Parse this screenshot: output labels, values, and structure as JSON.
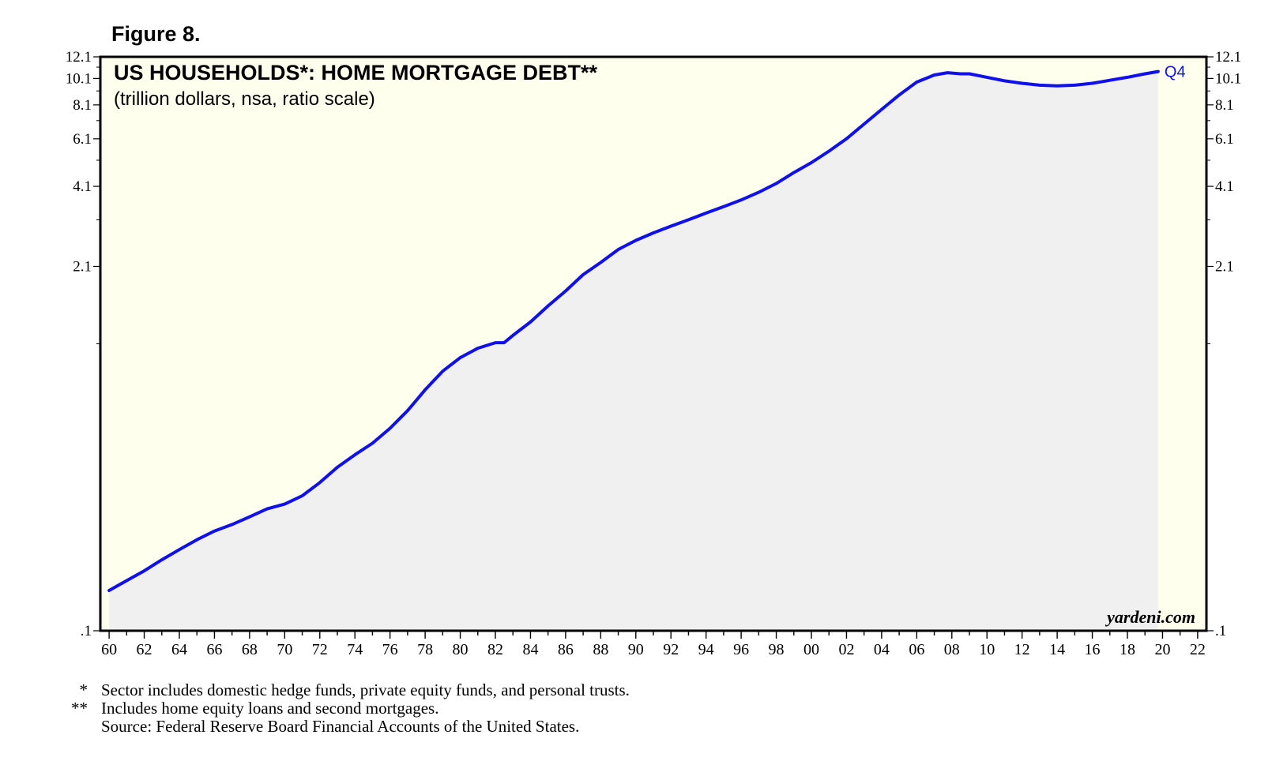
{
  "figure_label": "Figure 8.",
  "colors": {
    "plot_background": "#ffffee",
    "area_fill": "#f0f0f0",
    "line": "#1010ee",
    "frame": "#000000"
  },
  "chart_data": {
    "type": "area",
    "title": "US HOUSEHOLDS*: HOME MORTGAGE DEBT**",
    "subtitle": "(trillion dollars, nsa, ratio scale)",
    "y_scale": "log",
    "ylim": [
      0.1,
      12.1
    ],
    "y_ticks": [
      ".1",
      "2.1",
      "4.1",
      "6.1",
      "8.1",
      "10.1",
      "12.1"
    ],
    "y_tick_values": [
      0.1,
      2.1,
      4.1,
      6.1,
      8.1,
      10.1,
      12.1
    ],
    "xlim": [
      1959.5,
      2022.5
    ],
    "x_ticks": [
      "60",
      "62",
      "64",
      "66",
      "68",
      "70",
      "72",
      "74",
      "76",
      "78",
      "80",
      "82",
      "84",
      "86",
      "88",
      "90",
      "92",
      "94",
      "96",
      "98",
      "00",
      "02",
      "04",
      "06",
      "08",
      "10",
      "12",
      "14",
      "16",
      "18",
      "20",
      "22"
    ],
    "x_tick_values": [
      1960,
      1962,
      1964,
      1966,
      1968,
      1970,
      1972,
      1974,
      1976,
      1978,
      1980,
      1982,
      1984,
      1986,
      1988,
      1990,
      1992,
      1994,
      1996,
      1998,
      2000,
      2002,
      2004,
      2006,
      2008,
      2010,
      2012,
      2014,
      2016,
      2018,
      2020,
      2022
    ],
    "last_label": "Q4",
    "series": [
      {
        "x": [
          1960.0,
          1961.0,
          1962.0,
          1963.0,
          1964.0,
          1965.0,
          1966.0,
          1967.0,
          1968.0,
          1969.0,
          1970.0,
          1971.0,
          1972.0,
          1973.0,
          1974.0,
          1975.0,
          1976.0,
          1977.0,
          1978.0,
          1979.0,
          1980.0,
          1981.0,
          1982.0,
          1982.5,
          1983.0,
          1984.0,
          1985.0,
          1986.0,
          1987.0,
          1988.0,
          1989.0,
          1990.0,
          1991.0,
          1992.0,
          1993.0,
          1994.0,
          1995.0,
          1996.0,
          1997.0,
          1998.0,
          1999.0,
          2000.0,
          2001.0,
          2002.0,
          2003.0,
          2004.0,
          2005.0,
          2006.0,
          2007.0,
          2007.75,
          2008.5,
          2009.0,
          2010.0,
          2011.0,
          2012.0,
          2013.0,
          2014.0,
          2015.0,
          2016.0,
          2017.0,
          2018.0,
          2019.0,
          2019.75
        ],
        "y": [
          0.14,
          0.152,
          0.165,
          0.181,
          0.197,
          0.214,
          0.23,
          0.243,
          0.259,
          0.277,
          0.288,
          0.309,
          0.345,
          0.392,
          0.435,
          0.479,
          0.543,
          0.629,
          0.749,
          0.875,
          0.98,
          1.06,
          1.11,
          1.11,
          1.18,
          1.32,
          1.51,
          1.71,
          1.96,
          2.17,
          2.42,
          2.61,
          2.78,
          2.94,
          3.1,
          3.28,
          3.46,
          3.66,
          3.9,
          4.2,
          4.6,
          5.0,
          5.5,
          6.1,
          6.9,
          7.8,
          8.8,
          9.8,
          10.4,
          10.6,
          10.5,
          10.5,
          10.2,
          9.9,
          9.7,
          9.55,
          9.5,
          9.55,
          9.7,
          9.95,
          10.2,
          10.5,
          10.7
        ]
      }
    ]
  },
  "watermark": "yardeni.com",
  "footnotes": {
    "note1_marker": "*",
    "note1_text": "Sector includes domestic hedge funds, private equity funds, and personal trusts.",
    "note2_marker": "**",
    "note2_text": "Includes home equity loans and second mortgages.",
    "source": "Source: Federal Reserve Board Financial Accounts of the United States."
  }
}
